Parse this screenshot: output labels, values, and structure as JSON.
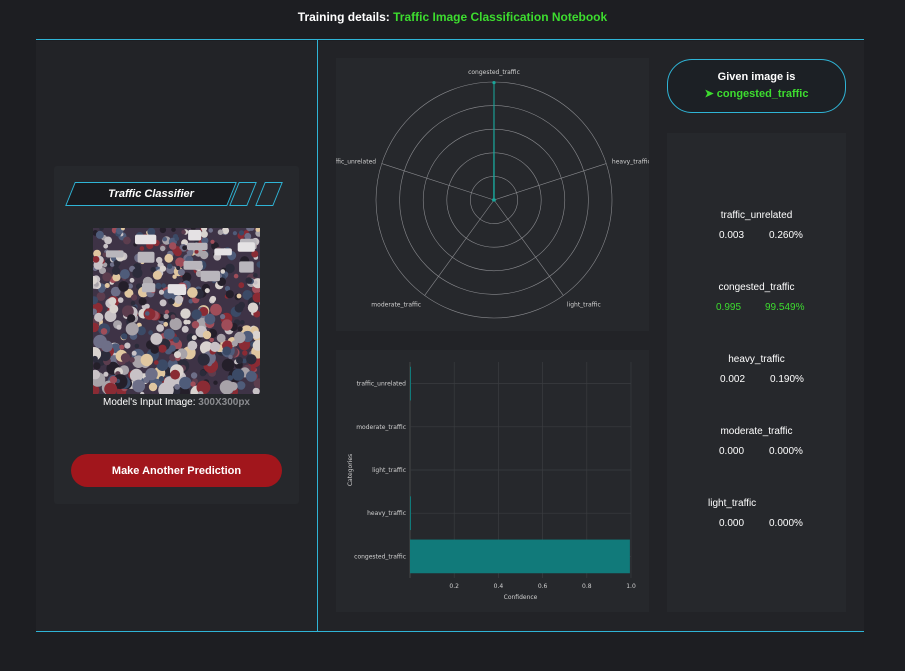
{
  "header": {
    "prefix": "Training details:",
    "link": "Traffic Image Classification Notebook"
  },
  "classifier": {
    "title": "Traffic Classifier",
    "input_label": "Model's Input Image:",
    "input_size": "300X300px",
    "button": "Make Another Prediction"
  },
  "result": {
    "heading": "Given image is",
    "arrow": "➤",
    "label": "congested_traffic"
  },
  "scores": [
    {
      "name": "traffic_unrelated",
      "prob": "0.003",
      "percent": "0.260%"
    },
    {
      "name": "congested_traffic",
      "prob": "0.995",
      "percent": "99.549%"
    },
    {
      "name": "heavy_traffic",
      "prob": "0.002",
      "percent": "0.190%"
    },
    {
      "name": "moderate_traffic",
      "prob": "0.000",
      "percent": "0.000%"
    },
    {
      "name": "light_traffic",
      "prob": "0.000",
      "percent": "0.000%"
    }
  ],
  "colors": {
    "accent": "#2fb4d6",
    "highlight": "#3ddc2f",
    "button": "#a1161c",
    "bar": "#117a7a"
  },
  "chart_data": [
    {
      "type": "radar",
      "categories": [
        "congested_traffic",
        "heavy_traffic",
        "light_traffic",
        "moderate_traffic",
        "traffic_unrelated"
      ],
      "values": [
        0.995,
        0.002,
        0.0,
        0.0,
        0.003
      ],
      "rlim": [
        0,
        1
      ],
      "grid": true
    },
    {
      "type": "bar",
      "orientation": "horizontal",
      "categories": [
        "traffic_unrelated",
        "moderate_traffic",
        "light_traffic",
        "heavy_traffic",
        "congested_traffic"
      ],
      "values": [
        0.003,
        0.0,
        0.0,
        0.002,
        0.995
      ],
      "xlabel": "Confidence",
      "ylabel": "Categories",
      "xlim": [
        0,
        1
      ],
      "xticks": [
        "0.2",
        "0.4",
        "0.6",
        "0.8",
        "1.0"
      ],
      "grid": true
    }
  ]
}
